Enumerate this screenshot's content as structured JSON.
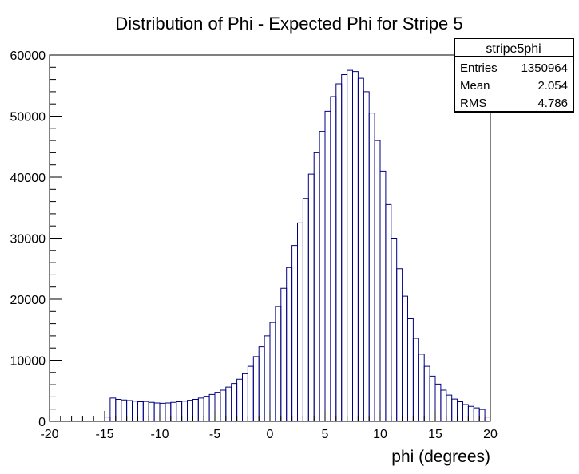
{
  "chart_data": {
    "type": "bar",
    "title": "Distribution of Phi - Expected Phi for Stripe 5",
    "xlabel": "phi (degrees)",
    "ylabel": "",
    "xlim": [
      -20,
      20
    ],
    "ylim": [
      0,
      60000
    ],
    "grid": false,
    "x_ticks": [
      "-20",
      "-15",
      "-10",
      "-5",
      "0",
      "5",
      "10",
      "15",
      "20"
    ],
    "y_ticks": [
      "0",
      "10000",
      "20000",
      "30000",
      "40000",
      "50000",
      "60000"
    ],
    "bin_width": 0.5,
    "x_start": -15,
    "line_color": "#000080",
    "values": [
      700,
      3800,
      3600,
      3500,
      3400,
      3300,
      3200,
      3250,
      3100,
      3000,
      2950,
      3000,
      3100,
      3200,
      3300,
      3450,
      3600,
      3800,
      4100,
      4400,
      4750,
      5100,
      5600,
      6200,
      6900,
      7800,
      9000,
      10600,
      12200,
      14000,
      16200,
      18800,
      21800,
      25200,
      28800,
      32500,
      36500,
      40500,
      44000,
      47500,
      50800,
      53200,
      55300,
      56800,
      57500,
      57300,
      56200,
      54000,
      50500,
      46000,
      41000,
      35500,
      30000,
      25000,
      20500,
      16800,
      13600,
      11000,
      9000,
      7400,
      6100,
      5100,
      4300,
      3650,
      3200,
      2750,
      2450,
      2200,
      1950,
      700
    ]
  },
  "stats_box": {
    "name": "stripe5phi",
    "rows": [
      {
        "label": "Entries",
        "value": "1350964"
      },
      {
        "label": "Mean",
        "value": "2.054"
      },
      {
        "label": "RMS",
        "value": "4.786"
      }
    ]
  }
}
